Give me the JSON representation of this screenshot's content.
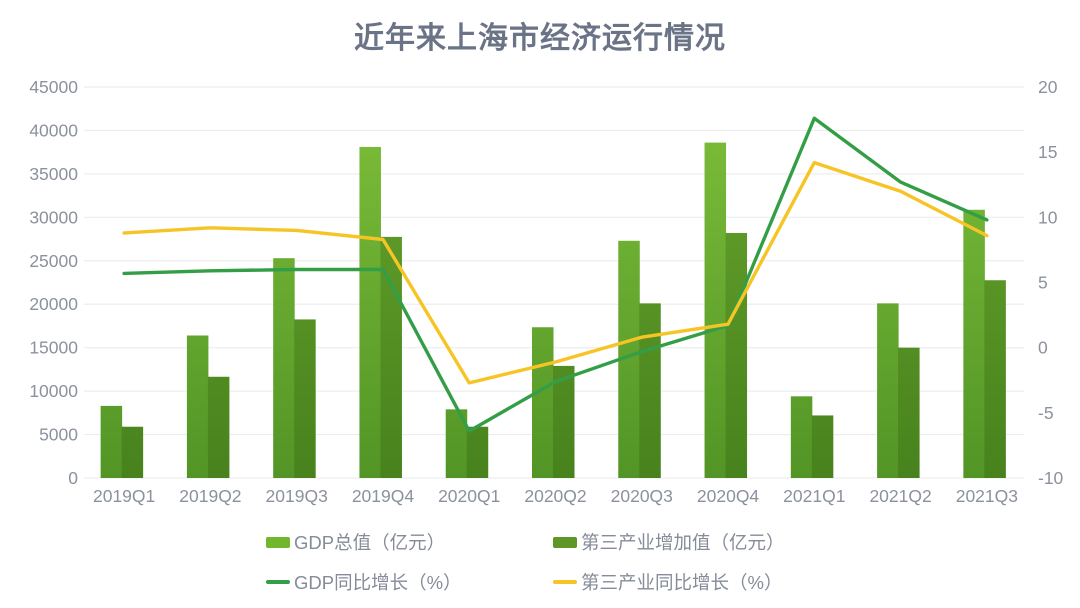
{
  "title": "近年来上海市经济运行情况",
  "colors": {
    "background": "#ffffff",
    "title_text": "#6b7386",
    "axis_text": "#8b919d",
    "gridline": "#ededed",
    "bar_gdp_top": "#7fc03a",
    "bar_gdp_bottom": "#529526",
    "bar_tertiary_top": "#6aa62e",
    "bar_tertiary_bottom": "#47821d",
    "line_gdp_growth": "#349e46",
    "line_tertiary_growth": "#f7c426"
  },
  "chart_data": {
    "type": "combo-bar-line",
    "title": "近年来上海市经济运行情况",
    "categories": [
      "2019Q1",
      "2019Q2",
      "2019Q3",
      "2019Q4",
      "2020Q1",
      "2020Q2",
      "2020Q3",
      "2020Q4",
      "2021Q1",
      "2021Q2",
      "2021Q3"
    ],
    "series": [
      {
        "name": "GDP总值（亿元）",
        "type": "bar",
        "axis": "left",
        "values": [
          8300,
          16400,
          25300,
          38100,
          7900,
          17350,
          27300,
          38600,
          9400,
          20100,
          30870
        ]
      },
      {
        "name": "第三产业增加值（亿元）",
        "type": "bar",
        "axis": "left",
        "values": [
          5900,
          11650,
          18250,
          27750,
          5900,
          12900,
          20100,
          28200,
          7200,
          15000,
          22760
        ]
      },
      {
        "name": "GDP同比增长（%）",
        "type": "line",
        "axis": "right",
        "values": [
          5.7,
          5.9,
          6.0,
          6.0,
          -6.4,
          -2.6,
          -0.3,
          1.7,
          17.6,
          12.7,
          9.8
        ]
      },
      {
        "name": "第三产业同比增长（%）",
        "type": "line",
        "axis": "right",
        "values": [
          8.8,
          9.2,
          9.0,
          8.3,
          -2.7,
          -1.1,
          0.8,
          1.8,
          14.2,
          12.0,
          8.6
        ]
      }
    ],
    "left_axis": {
      "min": 0,
      "max": 45000,
      "step": 5000,
      "ticks": [
        "0",
        "5000",
        "10000",
        "15000",
        "20000",
        "25000",
        "30000",
        "35000",
        "40000",
        "45000"
      ]
    },
    "right_axis": {
      "min": -10,
      "max": 20,
      "step": 5,
      "ticks": [
        "-10",
        "-5",
        "0",
        "5",
        "10",
        "15",
        "20"
      ]
    },
    "grid": true,
    "legend_position": "bottom"
  },
  "legend": {
    "entries": [
      {
        "label": "GDP总值（亿元）",
        "swatch": "bar",
        "color": "#72b62e"
      },
      {
        "label": "第三产业增加值（亿元）",
        "swatch": "bar",
        "color": "#5f9727"
      },
      {
        "label": "GDP同比增长（%）",
        "swatch": "line",
        "color": "#349e46"
      },
      {
        "label": "第三产业同比增长（%）",
        "swatch": "line",
        "color": "#f7c426"
      }
    ]
  }
}
